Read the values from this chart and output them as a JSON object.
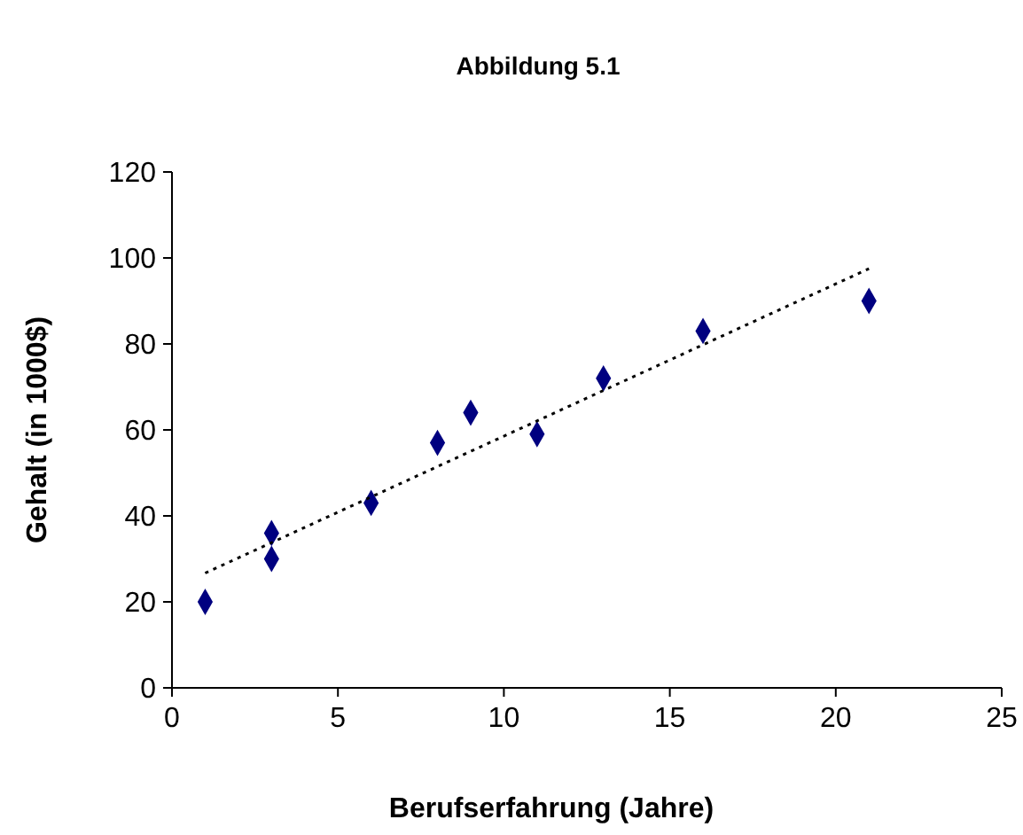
{
  "chart_data": {
    "type": "scatter",
    "title": "Abbildung 5.1",
    "xlabel": "Berufserfahrung (Jahre)",
    "ylabel": "Gehalt (in 1000$)",
    "xlim": [
      0,
      25
    ],
    "xticks": [
      0,
      5,
      10,
      15,
      20,
      25
    ],
    "ylim": [
      0,
      120
    ],
    "yticks": [
      0,
      20,
      40,
      60,
      80,
      100,
      120
    ],
    "grid": false,
    "series": [
      {
        "color": "#000080",
        "marker": "diamond",
        "x": [
          1,
          3,
          3,
          6,
          8,
          9,
          11,
          13,
          16,
          21
        ],
        "values": [
          20,
          36,
          30,
          43,
          57,
          64,
          59,
          72,
          83,
          90
        ]
      },
      {
        "type": "line",
        "color": "#000000",
        "line_style": "dotted",
        "marker": "none",
        "x": [
          1,
          21
        ],
        "values": [
          26.7,
          97.5
        ]
      }
    ]
  }
}
